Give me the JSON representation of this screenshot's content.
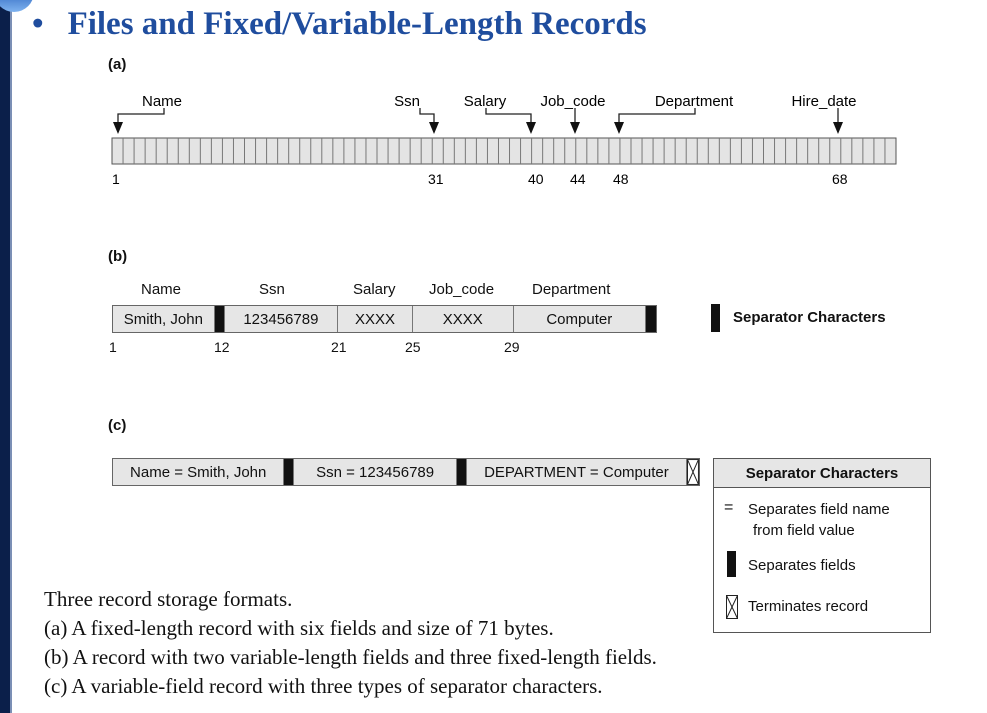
{
  "title": "Files and Fixed/Variable-Length Records",
  "bullet": "•",
  "part_a": {
    "tag": "(a)",
    "fields": [
      "Name",
      "Ssn",
      "Salary",
      "Job_code",
      "Department",
      "Hire_date"
    ],
    "positions": [
      "1",
      "31",
      "40",
      "44",
      "48",
      "68"
    ]
  },
  "part_b": {
    "tag": "(b)",
    "headers": [
      "Name",
      "Ssn",
      "Salary",
      "Job_code",
      "Department"
    ],
    "values": [
      "Smith, John",
      "123456789",
      "XXXX",
      "XXXX",
      "Computer"
    ],
    "positions": [
      "1",
      "12",
      "21",
      "25",
      "29"
    ],
    "legend": "Separator Characters"
  },
  "part_c": {
    "tag": "(c)",
    "values": [
      "Name = Smith, John",
      "Ssn = 123456789",
      "DEPARTMENT = Computer"
    ],
    "legend_title": "Separator Characters",
    "legend_equals": "=",
    "legend_items": [
      "Separates field name",
      "from field value",
      "Separates fields",
      "Terminates record"
    ]
  },
  "caption": [
    "Three record storage formats.",
    "(a)  A fixed-length record with six fields and size of 71 bytes.",
    "(b)  A record with two variable-length fields and three fixed-length fields.",
    "(c)  A variable-field record with three types of separator characters."
  ]
}
